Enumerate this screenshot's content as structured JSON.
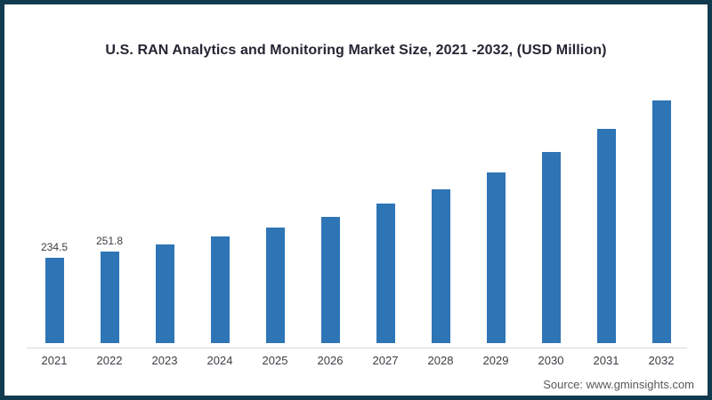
{
  "chart_data": {
    "type": "bar",
    "title": "U.S. RAN Analytics and Monitoring Market Size, 2021 -2032, (USD Million)",
    "categories": [
      "2021",
      "2022",
      "2023",
      "2024",
      "2025",
      "2026",
      "2027",
      "2028",
      "2029",
      "2030",
      "2031",
      "2032"
    ],
    "values": [
      234.5,
      251.8,
      272,
      293,
      318,
      348,
      384,
      423,
      469,
      526,
      590,
      667
    ],
    "value_labels_shown": {
      "2021": "234.5",
      "2022": "251.8"
    },
    "xlabel": "",
    "ylabel": "",
    "ylim": [
      0,
      700
    ],
    "grid": false,
    "legend": "none",
    "bar_color": "#2e75b6",
    "axis_line_color": "#d9d9d9"
  },
  "frame": {
    "border_color": "#113b4e",
    "background_color": "#ffffff"
  },
  "source": {
    "text": "Source: www.gminsights.com"
  }
}
